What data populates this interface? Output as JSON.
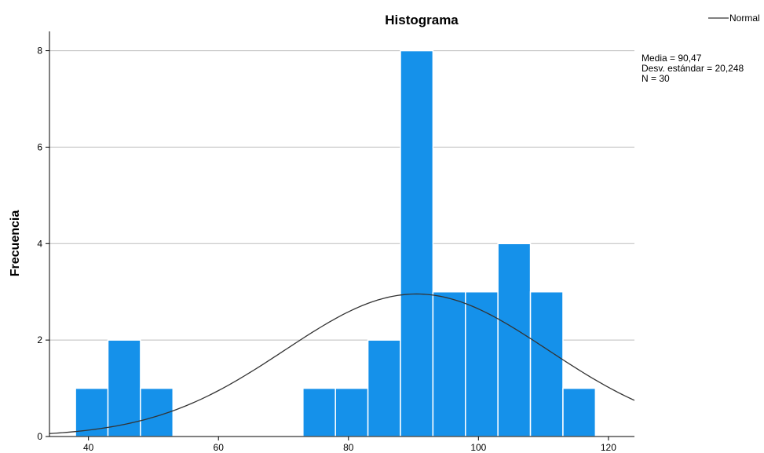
{
  "chart_data": {
    "type": "bar",
    "title": "Histograma",
    "xlabel": "",
    "ylabel": "Frecuencia",
    "bin_width": 5,
    "bins": [
      {
        "start": 38,
        "count": 1
      },
      {
        "start": 43,
        "count": 2
      },
      {
        "start": 48,
        "count": 1
      },
      {
        "start": 53,
        "count": 0
      },
      {
        "start": 58,
        "count": 0
      },
      {
        "start": 63,
        "count": 0
      },
      {
        "start": 68,
        "count": 0
      },
      {
        "start": 73,
        "count": 1
      },
      {
        "start": 78,
        "count": 1
      },
      {
        "start": 83,
        "count": 2
      },
      {
        "start": 88,
        "count": 8
      },
      {
        "start": 93,
        "count": 3
      },
      {
        "start": 98,
        "count": 3
      },
      {
        "start": 103,
        "count": 4
      },
      {
        "start": 108,
        "count": 3
      },
      {
        "start": 113,
        "count": 1
      }
    ],
    "xlim": [
      34,
      124
    ],
    "ylim": [
      0,
      8.4
    ],
    "xticks": [
      40,
      60,
      80,
      100,
      120
    ],
    "yticks": [
      0,
      2,
      4,
      6,
      8
    ],
    "grid": "horizontal",
    "bar_color": "#1591EA",
    "curve_color": "#333333",
    "normal_curve": {
      "mean": 90.47,
      "sd": 20.248,
      "n": 30
    },
    "legend": {
      "entries": [
        "Normal"
      ],
      "position": "top-right"
    },
    "stats": [
      "Media = 90,47",
      "Desv. estándar = 20,248",
      "N = 30"
    ]
  }
}
